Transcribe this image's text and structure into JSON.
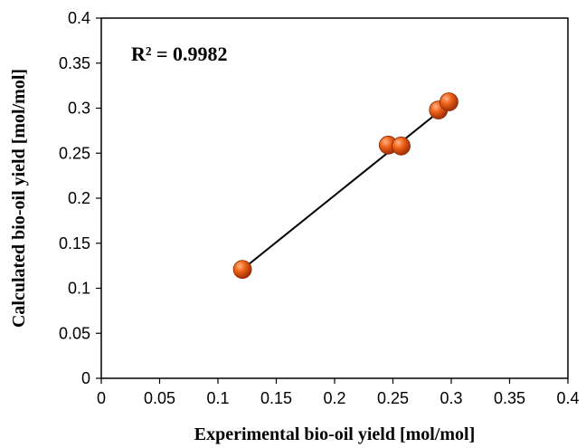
{
  "chart_data": {
    "type": "scatter",
    "xlabel": "Experimental bio-oil yield [mol/mol]",
    "ylabel": "Calculated bio-oil yield [mol/mol]",
    "xlim": [
      0,
      0.4
    ],
    "ylim": [
      0,
      0.4
    ],
    "xticks": [
      "0",
      "0.05",
      "0.1",
      "0.15",
      "0.2",
      "0.25",
      "0.3",
      "0.35",
      "0.4"
    ],
    "yticks": [
      "0",
      "0.05",
      "0.1",
      "0.15",
      "0.2",
      "0.25",
      "0.3",
      "0.35",
      "0.4"
    ],
    "annotation": "R² = 0.9982",
    "grid": false,
    "marker_color": "#e05a10",
    "points": [
      {
        "x": 0.121,
        "y": 0.121
      },
      {
        "x": 0.246,
        "y": 0.259
      },
      {
        "x": 0.257,
        "y": 0.258
      },
      {
        "x": 0.289,
        "y": 0.298
      },
      {
        "x": 0.298,
        "y": 0.307
      }
    ],
    "fit_line": {
      "x": [
        0.121,
        0.298
      ],
      "y": [
        0.121,
        0.305
      ]
    }
  }
}
